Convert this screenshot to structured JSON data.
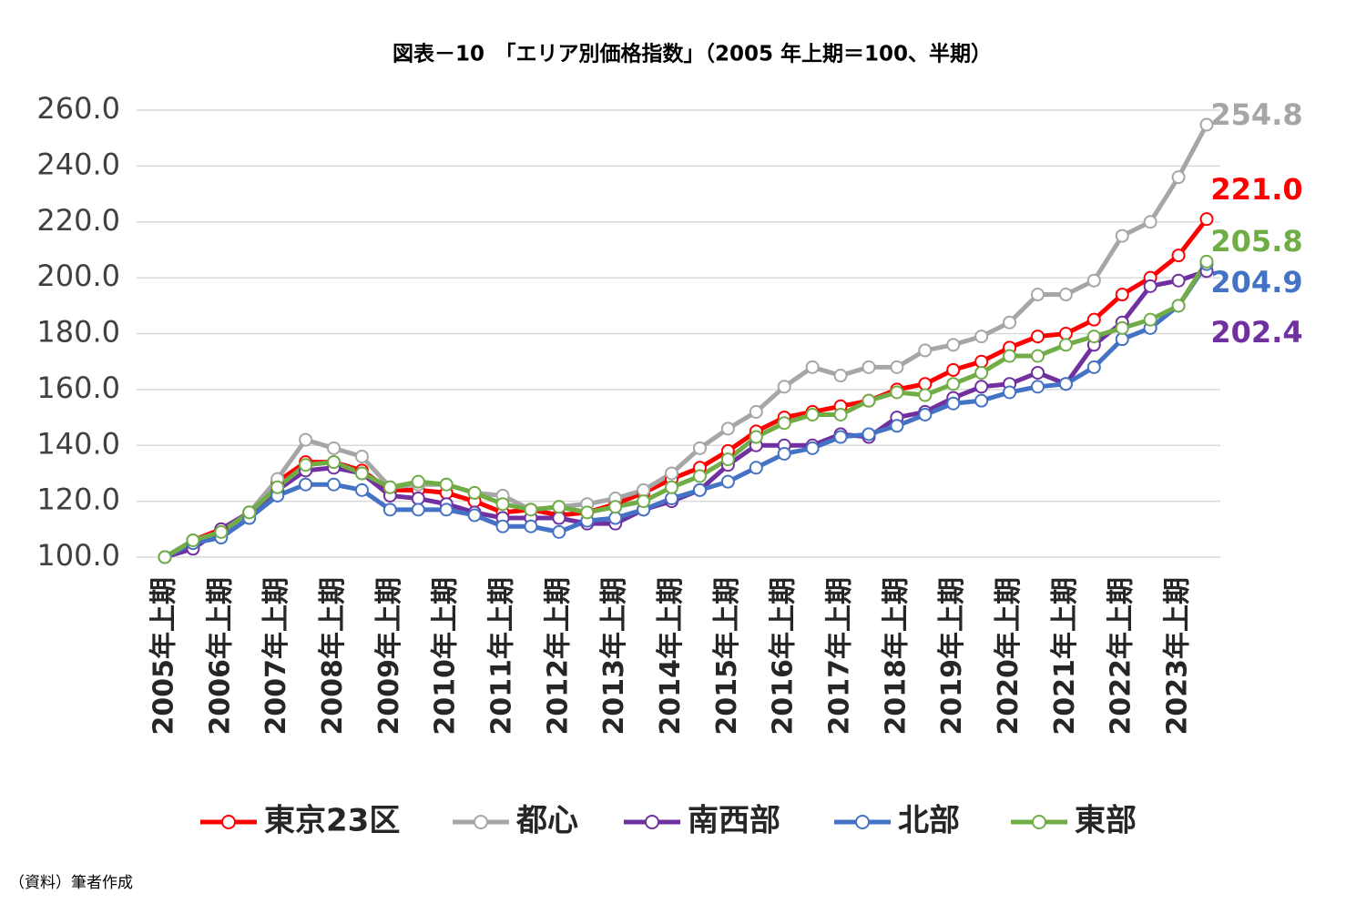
{
  "chart_data": {
    "type": "line",
    "title": "図表－10　「エリア別価格指数」（2005 年上期＝100、半期）",
    "source": "（資料）筆者作成",
    "categories": [
      "2005年上期",
      null,
      "2006年上期",
      null,
      "2007年上期",
      null,
      "2008年上期",
      null,
      "2009年上期",
      null,
      "2010年上期",
      null,
      "2011年上期",
      null,
      "2012年上期",
      null,
      "2013年上期",
      null,
      "2014年上期",
      null,
      "2015年上期",
      null,
      "2016年上期",
      null,
      "2017年上期",
      null,
      "2018年上期",
      null,
      "2019年上期",
      null,
      "2020年上期",
      null,
      "2021年上期",
      null,
      "2022年上期",
      null,
      "2023年上期",
      null
    ],
    "ylim": [
      100,
      260
    ],
    "yticks": [
      {
        "value": 100,
        "label": "100.0"
      },
      {
        "value": 120,
        "label": "120.0"
      },
      {
        "value": 140,
        "label": "140.0"
      },
      {
        "value": 160,
        "label": "160.0"
      },
      {
        "value": 180,
        "label": "180.0"
      },
      {
        "value": 200,
        "label": "200.0"
      },
      {
        "value": 220,
        "label": "220.0"
      },
      {
        "value": 240,
        "label": "240.0"
      },
      {
        "value": 260,
        "label": "260.0"
      }
    ],
    "grid": true,
    "series": [
      {
        "name": "東京23区",
        "color": "#ff0000",
        "values": [
          100,
          106,
          110,
          116,
          127,
          134,
          134,
          131,
          124,
          124,
          123,
          120,
          116,
          117,
          115,
          116,
          119,
          123,
          128,
          132,
          138,
          145,
          150,
          152,
          154,
          156,
          160,
          162,
          167,
          170,
          175,
          179,
          180,
          185,
          194,
          200,
          208,
          221
        ],
        "value_labels": [
          null,
          null,
          null,
          null,
          null,
          null,
          null,
          null,
          null,
          null,
          null,
          null,
          null,
          null,
          null,
          null,
          null,
          null,
          null,
          null,
          null,
          null,
          null,
          null,
          null,
          null,
          null,
          null,
          null,
          null,
          null,
          null,
          null,
          null,
          null,
          null,
          null,
          "221.0"
        ]
      },
      {
        "name": "都心",
        "color": "#a6a6a6",
        "values": [
          100,
          106,
          109,
          116,
          128,
          142,
          139,
          136,
          125,
          126,
          126,
          123,
          122,
          117,
          118,
          119,
          121,
          124,
          130,
          139,
          146,
          152,
          161,
          168,
          165,
          168,
          168,
          174,
          176,
          179,
          184,
          194,
          194,
          199,
          215,
          220,
          236,
          254.8
        ]
      },
      {
        "name": "南西部",
        "color": "#7030a0",
        "values": [
          100,
          103,
          110,
          116,
          124,
          131,
          132,
          130,
          122,
          121,
          119,
          116,
          114,
          114,
          114,
          112,
          112,
          117,
          120,
          124,
          133,
          140,
          140,
          140,
          144,
          143,
          150,
          152,
          157,
          161,
          162,
          166,
          162,
          176,
          184,
          197,
          199,
          202.4
        ]
      },
      {
        "name": "北部",
        "color": "#4472c4",
        "values": [
          100,
          105,
          107,
          114,
          122,
          126,
          126,
          124,
          117,
          117,
          117,
          115,
          111,
          111,
          109,
          113,
          114,
          117,
          121,
          124,
          127,
          132,
          137,
          139,
          143,
          144,
          147,
          151,
          155,
          156,
          159,
          161,
          162,
          168,
          178,
          182,
          190,
          204.9
        ]
      },
      {
        "name": "東部",
        "color": "#70ad47",
        "values": [
          100,
          106,
          109,
          116,
          125,
          133,
          134,
          130,
          125,
          127,
          126,
          123,
          119,
          117,
          118,
          116,
          118,
          120,
          125,
          129,
          135,
          143,
          148,
          151,
          151,
          156,
          159,
          158,
          162,
          166,
          172,
          172,
          176,
          179,
          182,
          185,
          190,
          205.8
        ]
      }
    ]
  }
}
